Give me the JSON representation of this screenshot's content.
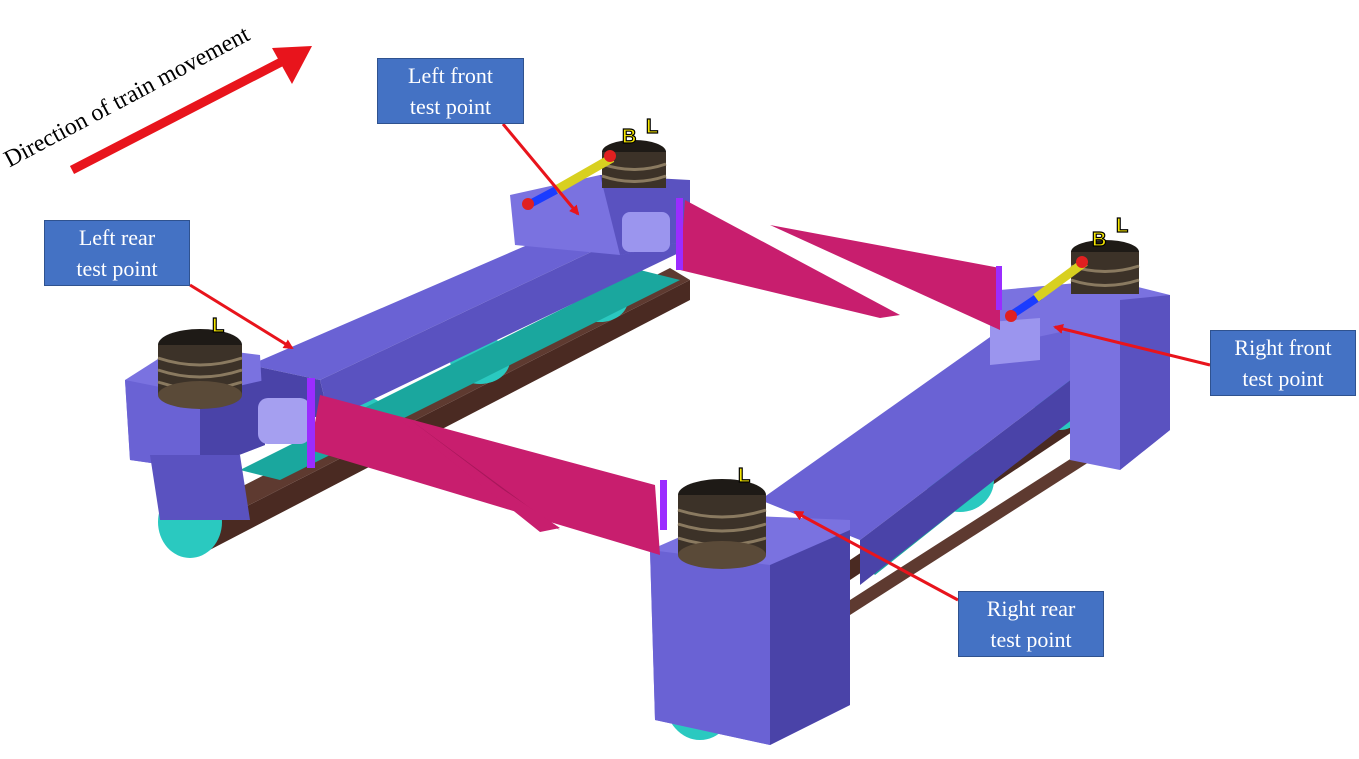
{
  "direction": {
    "label": "Direction of train movement",
    "arrow_color": "#e8141c"
  },
  "test_points": {
    "left_front": {
      "line1": "Left front",
      "line2": "test point"
    },
    "left_rear": {
      "line1": "Left rear",
      "line2": "test point"
    },
    "right_front": {
      "line1": "Right front",
      "line2": "test point"
    },
    "right_rear": {
      "line1": "Right rear",
      "line2": "test point"
    }
  },
  "spring_marks": {
    "front_left": [
      "B",
      "L"
    ],
    "front_right": [
      "B",
      "L"
    ],
    "rear_left": [
      "L"
    ],
    "rear_right": [
      "L"
    ]
  },
  "colors": {
    "label_fill": "#4472c4",
    "frame": "#6a62d4",
    "frame_dark": "#4a43a8",
    "bolster": "#c81e6e",
    "roller": "#2ac9c0",
    "track": "#4a2a22",
    "spring": "#3c3228",
    "pointer": "#e8141c"
  }
}
